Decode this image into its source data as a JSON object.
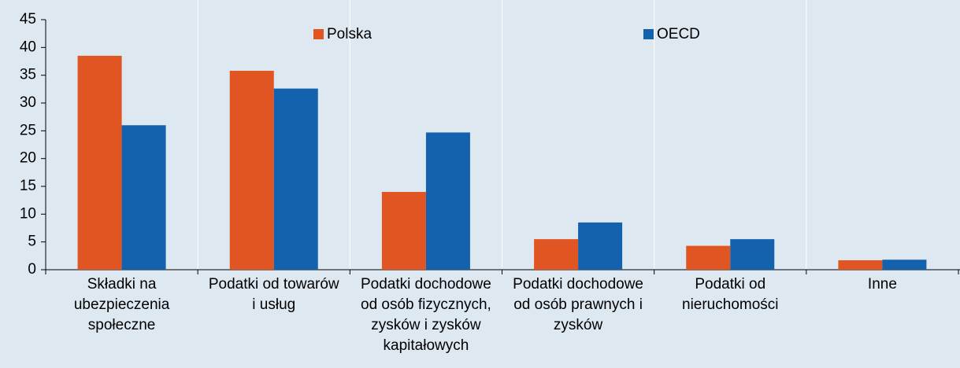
{
  "chart_data": {
    "type": "bar",
    "categories": [
      [
        "Składki na",
        "ubezpieczenia",
        "społeczne"
      ],
      [
        "Podatki od towarów",
        "i usług"
      ],
      [
        "Podatki dochodowe",
        "od osób fizycznych,",
        "zysków i zysków",
        "kapitałowych"
      ],
      [
        "Podatki dochodowe",
        "od osób prawnych i",
        "zysków"
      ],
      [
        "Podatki od",
        "nieruchomości"
      ],
      [
        "Inne"
      ]
    ],
    "series": [
      {
        "name": "Polska",
        "color": "#e05522",
        "values": [
          38.5,
          35.8,
          14.0,
          5.5,
          4.3,
          1.7
        ]
      },
      {
        "name": "OECD",
        "color": "#1462ae",
        "values": [
          26.0,
          32.6,
          24.7,
          8.5,
          5.5,
          1.8
        ]
      }
    ],
    "ylim": [
      0,
      45
    ],
    "yticks": [
      0,
      5,
      10,
      15,
      20,
      25,
      30,
      35,
      40,
      45
    ],
    "grid": true,
    "legend": "top"
  }
}
